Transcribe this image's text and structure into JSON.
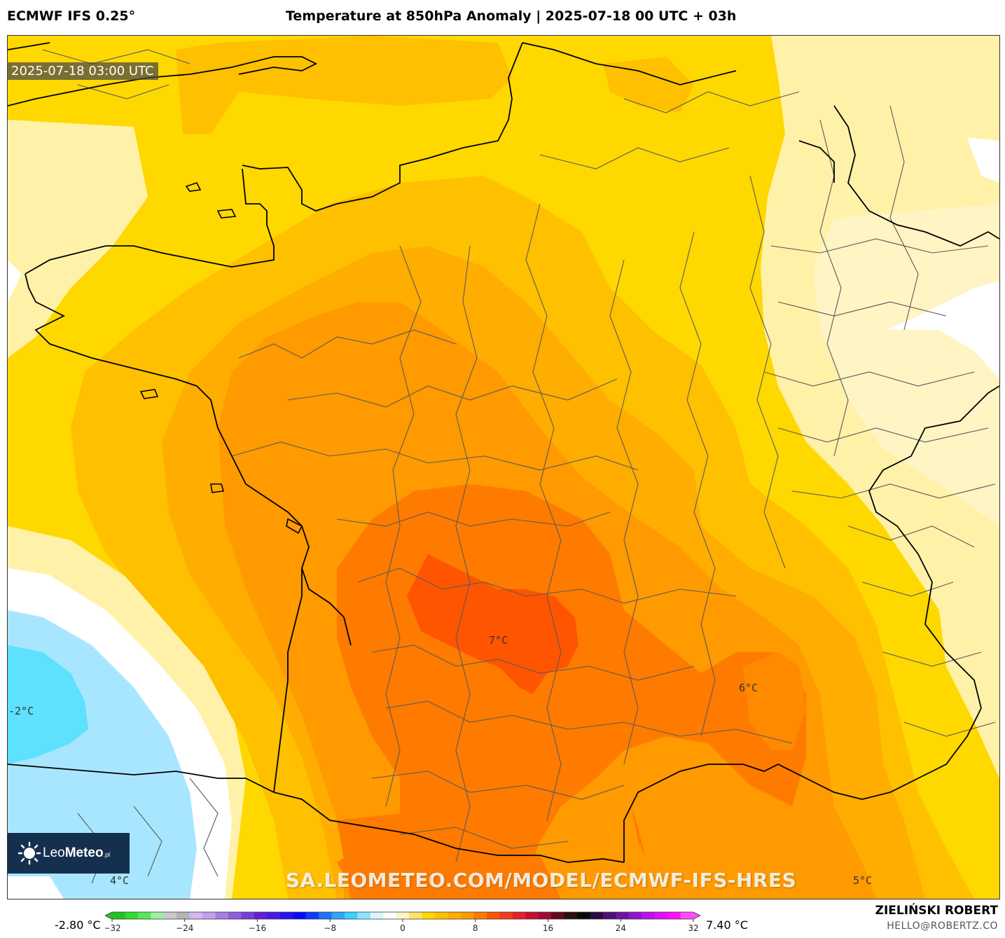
{
  "header": {
    "model": "ECMWF IFS 0.25°",
    "title": "Temperature at 850hPa Anomaly | 2025-07-18 00 UTC + 03h"
  },
  "map": {
    "valid_time": "2025-07-18 03:00 UTC",
    "watermark": "SA.LEOMETEO.COM/MODEL/ECMWF-IFS-HRES",
    "value_labels": [
      "7°C",
      "6°C",
      "-2°C",
      "4°C",
      "5°C"
    ],
    "fill_colors": {
      "pale_cream": "#fff4c4",
      "pale_yellow": "#fff2a8",
      "yellow": "#ffd800",
      "amber": "#ffc000",
      "orange_light": "#ffad00",
      "orange": "#ff9a00",
      "orange_dark": "#ff7b00",
      "red_orange": "#ff5500",
      "light_blue": "#a8e6ff",
      "cyan": "#5ee0ff",
      "white": "#ffffff",
      "coastline": "#000000",
      "borders": "#555555"
    }
  },
  "logo": {
    "name_regular": "Leo",
    "name_bold": "Meteo",
    "suffix": ".pl",
    "icon": "sun-icon"
  },
  "colorbar": {
    "min_label": "-2.80 °C",
    "max_label": "7.40 °C",
    "ticks": [
      "−32",
      "−24",
      "−16",
      "−8",
      "0",
      "8",
      "16",
      "24",
      "32"
    ],
    "range": [
      -32,
      32
    ],
    "colors": [
      "#22c322",
      "#2fdc2f",
      "#5ae65a",
      "#9ef09e",
      "#c9c9c9",
      "#b5b5b5",
      "#d2b7f0",
      "#bfa0ec",
      "#a77fe5",
      "#8f5edd",
      "#7a3ed6",
      "#6420d0",
      "#4b1ae0",
      "#2a12f0",
      "#0a0aff",
      "#0f3cff",
      "#1e73ff",
      "#2ea6ff",
      "#3fd0ff",
      "#8ae6ff",
      "#d9f6ff",
      "#ffffff",
      "#fff4c4",
      "#ffe566",
      "#ffd800",
      "#ffc000",
      "#ffad00",
      "#ff9a00",
      "#ff7b00",
      "#ff5500",
      "#f53a1c",
      "#e8202c",
      "#c41030",
      "#a00a30",
      "#600a20",
      "#2b0f10",
      "#0a0a0a",
      "#2a0a40",
      "#4c0f75",
      "#6e12a5",
      "#9214d2",
      "#c010ee",
      "#e010ff",
      "#ff10ff",
      "#ff4cff"
    ]
  },
  "footer": {
    "author": "ZIELIŃSKI ROBERT",
    "email": "HELLO@ROBERTZ.CO"
  }
}
